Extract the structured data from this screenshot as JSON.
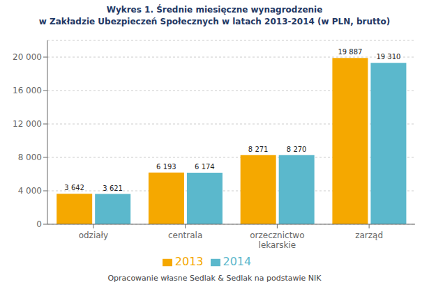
{
  "chart_data": {
    "type": "bar",
    "title": "Wykres 1. Średnie miesięczne wynagrodzenie",
    "subtitle": "w Zakładzie Ubezpieczeń Społecznych w latach 2013-2014 (w PLN, brutto)",
    "annotations": [
      "Opracowanie własne Sedlak & Sedlak na podstawie NIK"
    ],
    "categories": [
      "odziały",
      "centrala",
      "orzecznictwo\nlekarskie",
      "zarząd"
    ],
    "series": [
      {
        "name": "2013",
        "color": "#F5A800",
        "values": [
          3642,
          6193,
          8271,
          19887
        ],
        "value_labels": [
          "3 642",
          "6 193",
          "8 271",
          "19 887"
        ]
      },
      {
        "name": "2014",
        "color": "#5BB8CC",
        "values": [
          3621,
          6174,
          8270,
          19310
        ],
        "value_labels": [
          "3 621",
          "6 174",
          "8 270",
          "19 310"
        ]
      }
    ],
    "ylim": [
      0,
      22000
    ],
    "yticks": [
      0,
      {
        "value": 4000,
        "label": "4 000"
      },
      {
        "value": 8000,
        "label": "8 000"
      },
      {
        "value": 12000,
        "label": "12 000"
      },
      {
        "value": 16000,
        "label": "16 000"
      },
      {
        "value": 20000,
        "label": "20 000"
      }
    ],
    "grid": true,
    "legend": "bottom",
    "data_labels": true
  }
}
